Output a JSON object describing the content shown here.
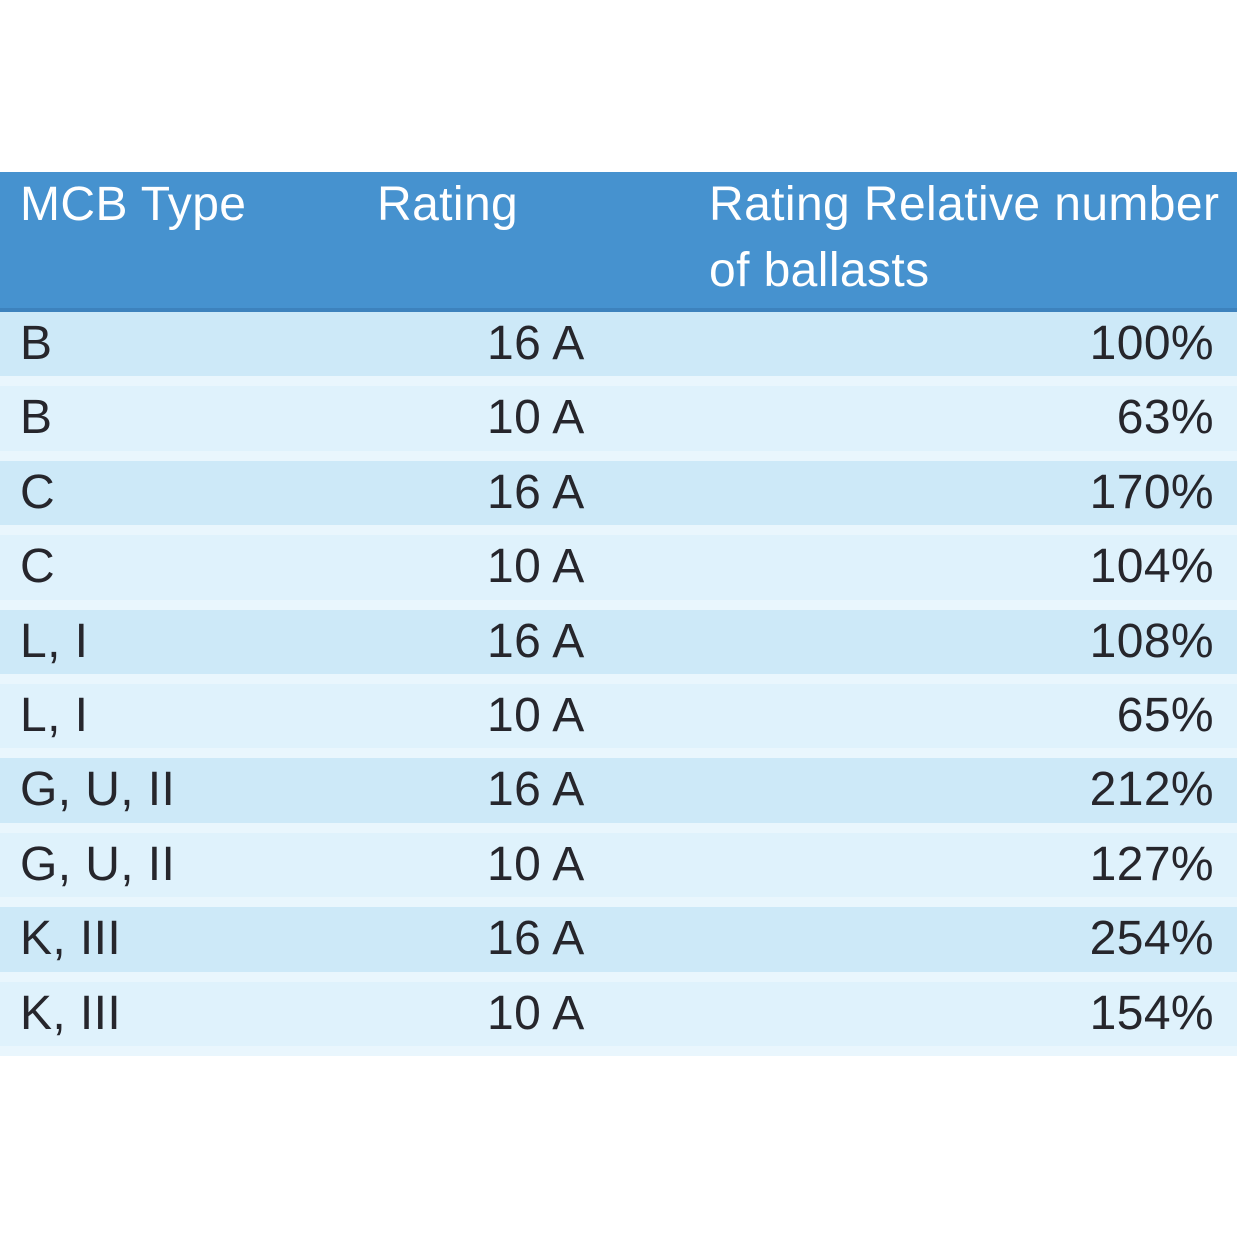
{
  "page": {
    "background_color": "#ffffff",
    "description": "Printed manual table: MCB type vs rating vs relative number of ballasts"
  },
  "table": {
    "colors": {
      "header_bg": "#4692cf",
      "header_bottom_edge": "#3d82bd",
      "header_text": "#ffffff",
      "row_dark_bg": "#cde9f8",
      "row_light_bg": "#dff2fc",
      "row_separator": "#e9f6fd",
      "body_text": "#26262c"
    },
    "header": {
      "mcb_type": "MCB Type",
      "rating": "Rating",
      "relative_ballasts": "Rating Relative number\nof ballasts"
    },
    "rows": [
      {
        "type": "B",
        "rating": "16 A",
        "relative": "100%"
      },
      {
        "type": "B",
        "rating": "10 A",
        "relative": "63%"
      },
      {
        "type": "C",
        "rating": "16 A",
        "relative": "170%"
      },
      {
        "type": "C",
        "rating": "10 A",
        "relative": "104%"
      },
      {
        "type": "L, I",
        "rating": "16 A",
        "relative": "108%"
      },
      {
        "type": "L, I",
        "rating": "10 A",
        "relative": "65%"
      },
      {
        "type": "G, U, II",
        "rating": "16 A",
        "relative": "212%"
      },
      {
        "type": "G, U, II",
        "rating": "10 A",
        "relative": "127%"
      },
      {
        "type": "K, III",
        "rating": "16 A",
        "relative": "254%"
      },
      {
        "type": "K, III",
        "rating": "10 A",
        "relative": "154%"
      }
    ]
  }
}
